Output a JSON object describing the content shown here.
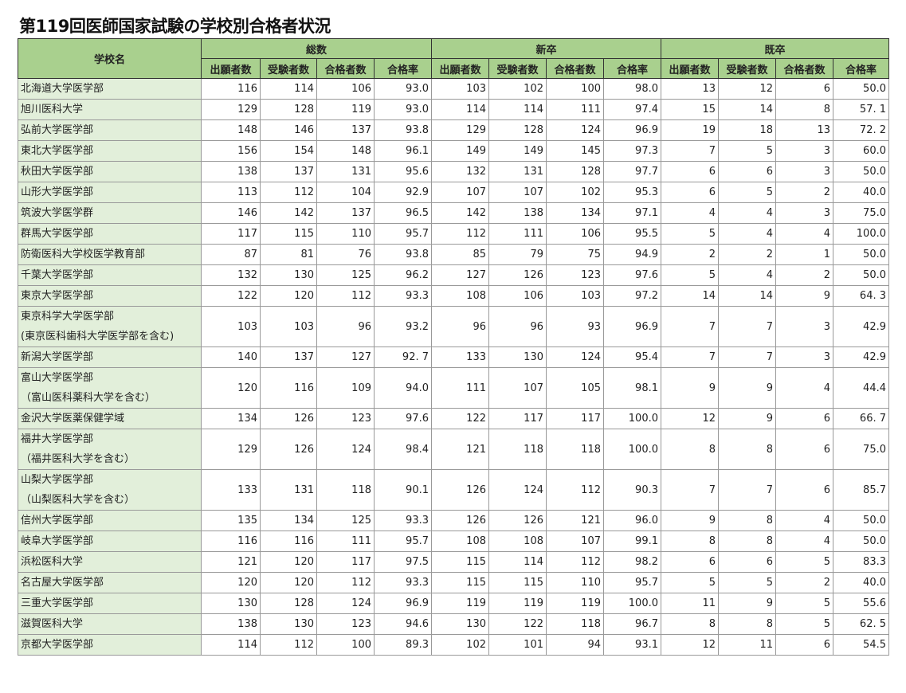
{
  "title": "第119回医師国家試験の学校別合格者状況",
  "headers": {
    "school": "学校名",
    "groups": [
      "総数",
      "新卒",
      "既卒"
    ],
    "cols": [
      "出願者数",
      "受験者数",
      "合格者数",
      "合格率"
    ]
  },
  "rows": [
    {
      "name": [
        "北海道大学医学部"
      ],
      "v": [
        "116",
        "114",
        "106",
        "93.0",
        "103",
        "102",
        "100",
        "98.0",
        "13",
        "12",
        "6",
        "50.0"
      ]
    },
    {
      "name": [
        "旭川医科大学"
      ],
      "v": [
        "129",
        "128",
        "119",
        "93.0",
        "114",
        "114",
        "111",
        "97.4",
        "15",
        "14",
        "8",
        "57. 1"
      ]
    },
    {
      "name": [
        "弘前大学医学部"
      ],
      "v": [
        "148",
        "146",
        "137",
        "93.8",
        "129",
        "128",
        "124",
        "96.9",
        "19",
        "18",
        "13",
        "72. 2"
      ]
    },
    {
      "name": [
        "東北大学医学部"
      ],
      "v": [
        "156",
        "154",
        "148",
        "96.1",
        "149",
        "149",
        "145",
        "97.3",
        "7",
        "5",
        "3",
        "60.0"
      ]
    },
    {
      "name": [
        "秋田大学医学部"
      ],
      "v": [
        "138",
        "137",
        "131",
        "95.6",
        "132",
        "131",
        "128",
        "97.7",
        "6",
        "6",
        "3",
        "50.0"
      ]
    },
    {
      "name": [
        "山形大学医学部"
      ],
      "v": [
        "113",
        "112",
        "104",
        "92.9",
        "107",
        "107",
        "102",
        "95.3",
        "6",
        "5",
        "2",
        "40.0"
      ]
    },
    {
      "name": [
        "筑波大学医学群"
      ],
      "v": [
        "146",
        "142",
        "137",
        "96.5",
        "142",
        "138",
        "134",
        "97.1",
        "4",
        "4",
        "3",
        "75.0"
      ]
    },
    {
      "name": [
        "群馬大学医学部"
      ],
      "v": [
        "117",
        "115",
        "110",
        "95.7",
        "112",
        "111",
        "106",
        "95.5",
        "5",
        "4",
        "4",
        "100.0"
      ]
    },
    {
      "name": [
        "防衛医科大学校医学教育部"
      ],
      "v": [
        "87",
        "81",
        "76",
        "93.8",
        "85",
        "79",
        "75",
        "94.9",
        "2",
        "2",
        "1",
        "50.0"
      ]
    },
    {
      "name": [
        "千葉大学医学部"
      ],
      "v": [
        "132",
        "130",
        "125",
        "96.2",
        "127",
        "126",
        "123",
        "97.6",
        "5",
        "4",
        "2",
        "50.0"
      ]
    },
    {
      "name": [
        "東京大学医学部"
      ],
      "v": [
        "122",
        "120",
        "112",
        "93.3",
        "108",
        "106",
        "103",
        "97.2",
        "14",
        "14",
        "9",
        "64. 3"
      ]
    },
    {
      "name": [
        "東京科学大学医学部",
        "(東京医科歯科大学医学部を含む)"
      ],
      "v": [
        "103",
        "103",
        "96",
        "93.2",
        "96",
        "96",
        "93",
        "96.9",
        "7",
        "7",
        "3",
        "42.9"
      ]
    },
    {
      "name": [
        "新潟大学医学部"
      ],
      "v": [
        "140",
        "137",
        "127",
        "92. 7",
        "133",
        "130",
        "124",
        "95.4",
        "7",
        "7",
        "3",
        "42.9"
      ]
    },
    {
      "name": [
        "富山大学医学部",
        "（富山医科薬科大学を含む）"
      ],
      "v": [
        "120",
        "116",
        "109",
        "94.0",
        "111",
        "107",
        "105",
        "98.1",
        "9",
        "9",
        "4",
        "44.4"
      ]
    },
    {
      "name": [
        "金沢大学医薬保健学域"
      ],
      "v": [
        "134",
        "126",
        "123",
        "97.6",
        "122",
        "117",
        "117",
        "100.0",
        "12",
        "9",
        "6",
        "66. 7"
      ]
    },
    {
      "name": [
        "福井大学医学部",
        "（福井医科大学を含む）"
      ],
      "v": [
        "129",
        "126",
        "124",
        "98.4",
        "121",
        "118",
        "118",
        "100.0",
        "8",
        "8",
        "6",
        "75.0"
      ]
    },
    {
      "name": [
        "山梨大学医学部",
        "（山梨医科大学を含む）"
      ],
      "v": [
        "133",
        "131",
        "118",
        "90.1",
        "126",
        "124",
        "112",
        "90.3",
        "7",
        "7",
        "6",
        "85.7"
      ]
    },
    {
      "name": [
        "信州大学医学部"
      ],
      "v": [
        "135",
        "134",
        "125",
        "93.3",
        "126",
        "126",
        "121",
        "96.0",
        "9",
        "8",
        "4",
        "50.0"
      ]
    },
    {
      "name": [
        "岐阜大学医学部"
      ],
      "v": [
        "116",
        "116",
        "111",
        "95.7",
        "108",
        "108",
        "107",
        "99.1",
        "8",
        "8",
        "4",
        "50.0"
      ]
    },
    {
      "name": [
        "浜松医科大学"
      ],
      "v": [
        "121",
        "120",
        "117",
        "97.5",
        "115",
        "114",
        "112",
        "98.2",
        "6",
        "6",
        "5",
        "83.3"
      ]
    },
    {
      "name": [
        "名古屋大学医学部"
      ],
      "v": [
        "120",
        "120",
        "112",
        "93.3",
        "115",
        "115",
        "110",
        "95.7",
        "5",
        "5",
        "2",
        "40.0"
      ]
    },
    {
      "name": [
        "三重大学医学部"
      ],
      "v": [
        "130",
        "128",
        "124",
        "96.9",
        "119",
        "119",
        "119",
        "100.0",
        "11",
        "9",
        "5",
        "55.6"
      ]
    },
    {
      "name": [
        "滋賀医科大学"
      ],
      "v": [
        "138",
        "130",
        "123",
        "94.6",
        "130",
        "122",
        "118",
        "96.7",
        "8",
        "8",
        "5",
        "62. 5"
      ]
    },
    {
      "name": [
        "京都大学医学部"
      ],
      "v": [
        "114",
        "112",
        "100",
        "89.3",
        "102",
        "101",
        "94",
        "93.1",
        "12",
        "11",
        "6",
        "54.5"
      ]
    }
  ]
}
